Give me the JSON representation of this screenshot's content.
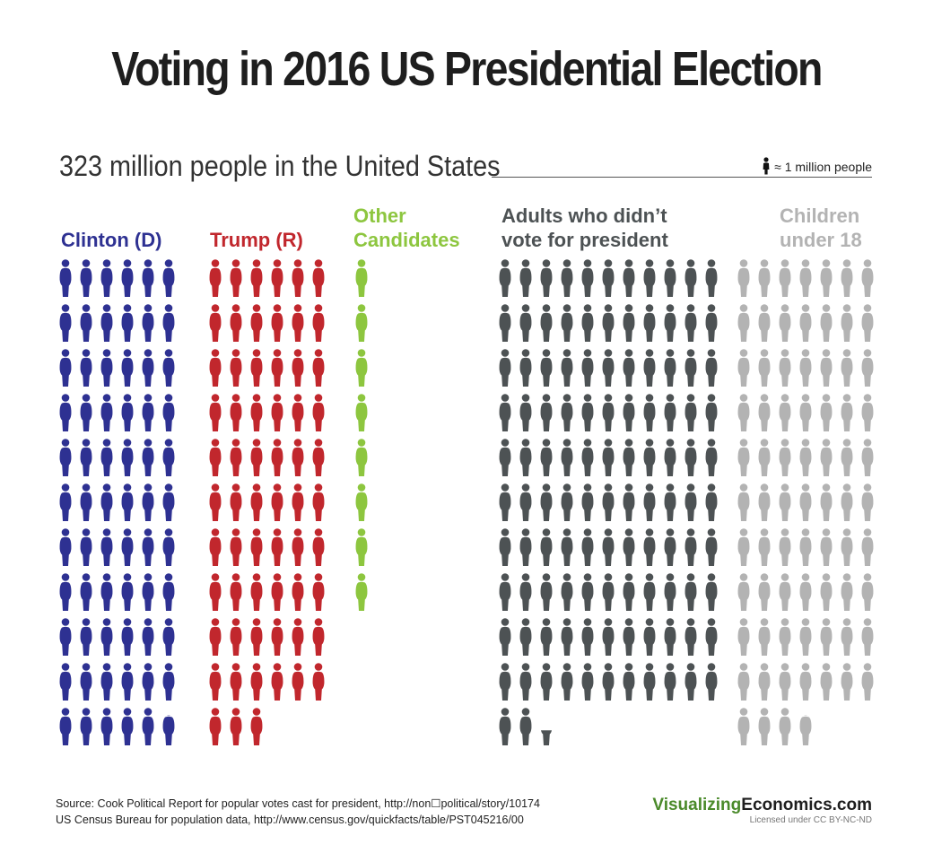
{
  "title": "Voting in 2016 US Presidential Election",
  "subtitle": "323 million people in the United States",
  "legend": {
    "text": "≈ 1 million people",
    "icon": "person-icon"
  },
  "chart_data": {
    "type": "pictograph",
    "unit": "1 million people",
    "total": 323,
    "groups": [
      {
        "name": "Clinton (D)",
        "label_lines": [
          "Clinton (D)"
        ],
        "value": 65.8,
        "color": "#2e3192"
      },
      {
        "name": "Trump (R)",
        "label_lines": [
          "Trump (R)"
        ],
        "value": 63,
        "color": "#c1272d"
      },
      {
        "name": "Other Candidates",
        "label_lines": [
          "Other",
          "Candidates"
        ],
        "value": 8,
        "color": "#8dc63f"
      },
      {
        "name": "Adults who didn’t vote for president",
        "label_lines": [
          "Adults who didn’t",
          "vote for president"
        ],
        "value": 112.4,
        "color": "#4d5254"
      },
      {
        "name": "Children under 18",
        "label_lines": [
          "Children",
          "under 18"
        ],
        "value": 73.8,
        "color": "#b3b3b3"
      }
    ]
  },
  "footer": {
    "source_line1": "Source:  Cook Political Report for popular votes cast for president, http://non☐political/story/10174",
    "source_line2": "US Census Bureau for population data, http://www.census.gov/quickfacts/table/PST045216/00",
    "brand_part1": "Visualizing",
    "brand_part2": "Economics.com",
    "license": "Licensed under CC BY-NC-ND"
  }
}
